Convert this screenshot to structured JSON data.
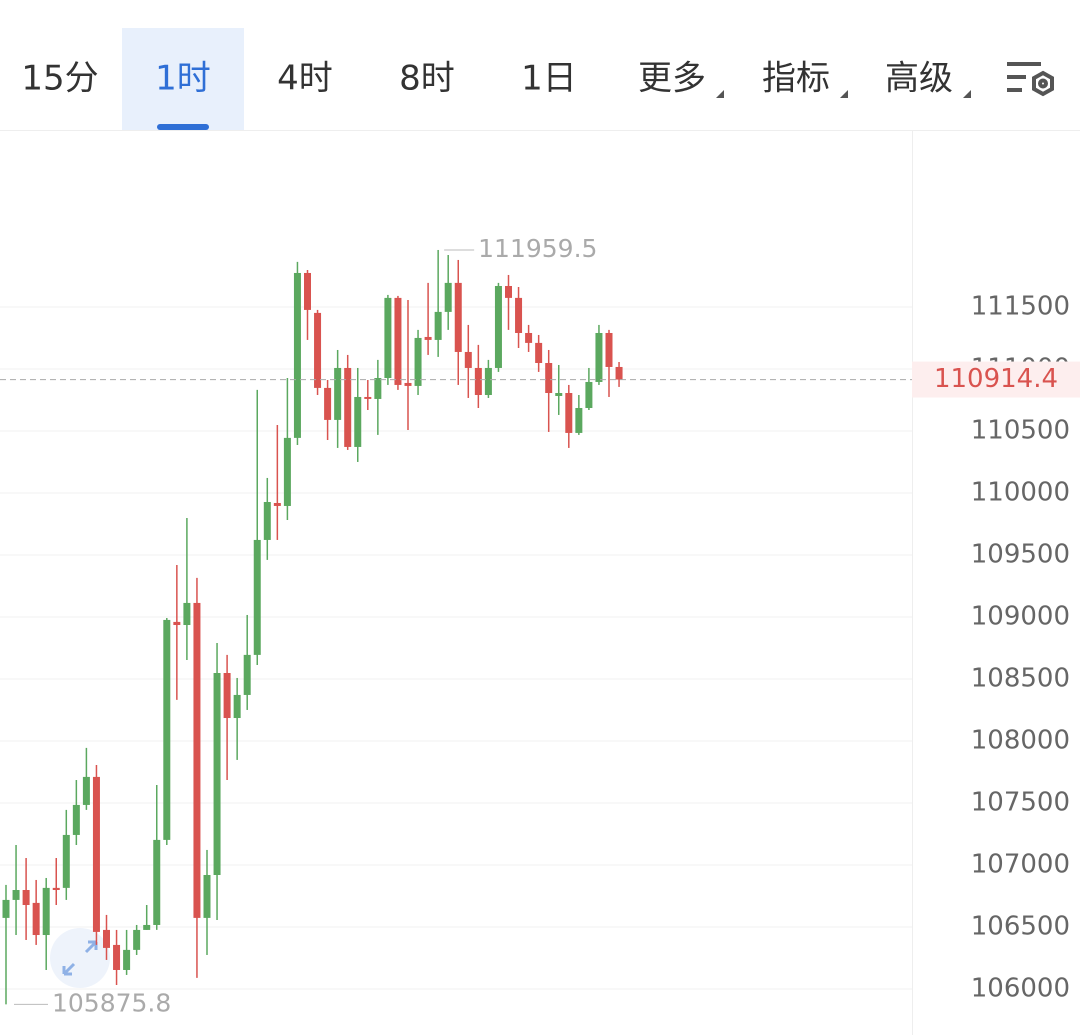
{
  "tabs": [
    "15分",
    "1时",
    "4时",
    "8时",
    "1日",
    "更多",
    "指标",
    "高级"
  ],
  "active_tab": 1,
  "chart_data": {
    "type": "candlestick",
    "up_color": "#5ba85f",
    "down_color": "#d9534f",
    "open": [
      106573,
      106718,
      106798,
      106694,
      106435,
      106815,
      106815,
      107242,
      107484,
      107710,
      106476,
      106355,
      106153,
      106315,
      106476,
      106516,
      107202,
      108960,
      108935,
      109113,
      106573,
      106919,
      108548,
      108185,
      108371,
      108694,
      109621,
      109919,
      109895,
      110444,
      111774,
      111452,
      110847,
      110589,
      111008,
      110371,
      110774,
      110758,
      110927,
      111573,
      110887,
      110863,
      111258,
      111234,
      111460,
      111694,
      111137,
      111008,
      110790,
      111008,
      111669,
      111573,
      111290,
      111210,
      111048,
      110782,
      110806,
      110484,
      110685,
      110895,
      111290,
      111016
    ],
    "high": [
      106839,
      107161,
      107056,
      106879,
      106895,
      107056,
      107444,
      107685,
      107944,
      107806,
      106597,
      106476,
      106476,
      106516,
      106677,
      107645,
      108992,
      109419,
      109798,
      109315,
      107121,
      108790,
      108694,
      108508,
      109016,
      110831,
      110121,
      110548,
      110927,
      111863,
      111798,
      111476,
      110911,
      111153,
      111113,
      111008,
      110911,
      111073,
      111597,
      111589,
      111556,
      111315,
      111694,
      111959.5,
      111919,
      111879,
      111355,
      111194,
      111073,
      111694,
      111758,
      111661,
      111355,
      111274,
      111153,
      111032,
      110871,
      110790,
      111008,
      111355,
      111315,
      111056
    ],
    "low": [
      105875.8,
      106435,
      106395,
      106355,
      106153,
      106677,
      106718,
      107161,
      107444,
      106355,
      106234,
      106032,
      106113,
      106274,
      106476,
      106476,
      107161,
      108331,
      108653,
      106089,
      106274,
      106556,
      107685,
      107847,
      108250,
      108613,
      109460,
      109621,
      109782,
      110387,
      111234,
      110790,
      110427,
      110363,
      110347,
      110250,
      110669,
      110468,
      110871,
      110831,
      110508,
      110790,
      111113,
      111097,
      111315,
      110871,
      110766,
      110685,
      110766,
      110976,
      111315,
      111169,
      111137,
      110976,
      110492,
      110629,
      110363,
      110468,
      110669,
      110871,
      110774,
      110855
    ],
    "close": [
      106718,
      106798,
      106677,
      106435,
      106815,
      106798,
      107242,
      107484,
      107710,
      106460,
      106331,
      106153,
      106315,
      106476,
      106516,
      107202,
      108976,
      108935,
      109113,
      106573,
      106919,
      108548,
      108185,
      108371,
      108694,
      109621,
      109927,
      109895,
      110444,
      111774,
      111476,
      110847,
      110589,
      111008,
      110371,
      110774,
      110758,
      110927,
      111573,
      110871,
      110863,
      111250,
      111234,
      111460,
      111694,
      111137,
      111008,
      110790,
      111008,
      111669,
      111573,
      111290,
      111210,
      111048,
      110806,
      110806,
      110484,
      110685,
      110895,
      111290,
      111016,
      110914.4
    ],
    "ylim": [
      105669,
      112927
    ],
    "yticks": [
      106000,
      106500,
      107000,
      107500,
      108000,
      108500,
      109000,
      109500,
      110000,
      110500,
      111000,
      111500
    ],
    "grid": true,
    "high_marker": 111959.5,
    "low_marker": 105875.8,
    "last_price": 110914.4
  }
}
